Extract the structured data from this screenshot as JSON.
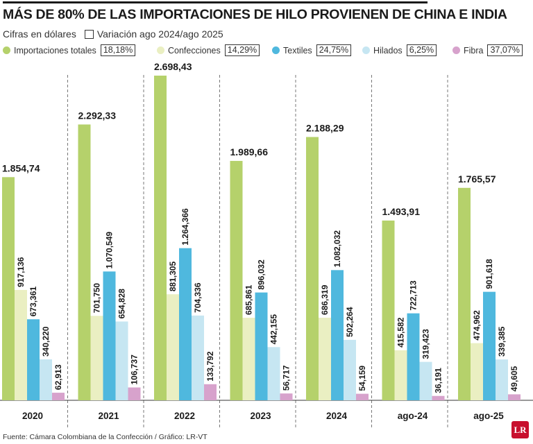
{
  "header": {
    "title": "MÁS DE 80% DE LAS IMPORTACIONES DE HILO PROVIENEN DE CHINA E INDIA",
    "unit_note": "Cifras en dólares",
    "variation_note": "Variación ago 2024/ago 2025"
  },
  "legend": [
    {
      "name": "Importaciones totales",
      "pct": "18,18%",
      "color": "#b5d16b"
    },
    {
      "name": "Confecciones",
      "pct": "14,29%",
      "color": "#eaefc2"
    },
    {
      "name": "Textiles",
      "pct": "24,75%",
      "color": "#4fb8de"
    },
    {
      "name": "Hilados",
      "pct": "6,25%",
      "color": "#c6e6f2"
    },
    {
      "name": "Fibra",
      "pct": "37,07%",
      "color": "#d7a2cc"
    }
  ],
  "chart_data": {
    "type": "bar",
    "categories": [
      "2020",
      "2021",
      "2022",
      "2023",
      "2024",
      "ago-24",
      "ago-25"
    ],
    "series": [
      {
        "name": "Importaciones totales",
        "color": "#b5d16b",
        "values": [
          1854.74,
          2292.33,
          2698.43,
          1989.66,
          2188.29,
          1493.91,
          1765.57
        ],
        "labels": [
          "1.854,74",
          "2.292,33",
          "2.698,43",
          "1.989,66",
          "2.188,29",
          "1.493,91",
          "1.765,57"
        ]
      },
      {
        "name": "Confecciones",
        "color": "#eaefc2",
        "values": [
          917.136,
          701.75,
          881.305,
          685.861,
          686.319,
          415.582,
          474.962
        ],
        "labels": [
          "917,136",
          "701,750",
          "881,305",
          "685,861",
          "686,319",
          "415,582",
          "474,962"
        ]
      },
      {
        "name": "Textiles",
        "color": "#4fb8de",
        "values": [
          673.361,
          1070.549,
          1264.366,
          896.032,
          1082.032,
          722.713,
          901.618
        ],
        "labels": [
          "673,361",
          "1.070,549",
          "1.264,366",
          "896,032",
          "1.082,032",
          "722,713",
          "901,618"
        ]
      },
      {
        "name": "Hilados",
        "color": "#c6e6f2",
        "values": [
          340.22,
          654.828,
          704.336,
          442.155,
          502.264,
          319.423,
          339.385
        ],
        "labels": [
          "340,220",
          "654,828",
          "704,336",
          "442,155",
          "502,264",
          "319,423",
          "339,385"
        ]
      },
      {
        "name": "Fibra",
        "color": "#d7a2cc",
        "values": [
          62.913,
          106.737,
          133.792,
          56.717,
          54.159,
          36.191,
          49.605
        ],
        "labels": [
          "62,913",
          "106,737",
          "133,792",
          "56,717",
          "54,159",
          "36,191",
          "49,605"
        ]
      }
    ],
    "ylim": [
      0,
      2698.43
    ],
    "grid": false,
    "legend_position": "top"
  },
  "footer": {
    "source": "Fuente: Cámara Colombiana de la Confección / Gráfico: LR-VT",
    "logo": "LR"
  }
}
